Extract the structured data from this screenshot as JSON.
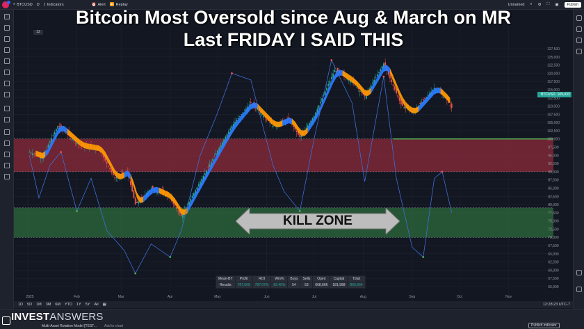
{
  "toolbar": {
    "symbol": "BTCUSD",
    "interval": "D",
    "indicators_label": "Indicators",
    "alert_label": "Alert",
    "replay_label": "Replay",
    "layout_label": "Unnamed",
    "publish_label": "Publish"
  },
  "headline": {
    "line1": "Bitcoin Most Oversold since Aug & March on MR",
    "line2": "Last FRIDAY I SAID THIS"
  },
  "legend_badge": "12",
  "kill_zone_label": "KILL ZONE",
  "price_tag": {
    "symbol": "BTCUSD",
    "value": "109,433"
  },
  "results_table": {
    "headers": [
      "Mean-BT",
      "Profit",
      "ROI",
      "Win%",
      "Buys",
      "Sells",
      "Open",
      "Capital",
      "Total"
    ],
    "row": [
      "Results",
      "787,069",
      "787.07%",
      "82.45%",
      "54",
      "53",
      "668,666",
      "181,998",
      "850,664"
    ]
  },
  "timeframes": [
    "1D",
    "5D",
    "1M",
    "3M",
    "6M",
    "YTD",
    "1Y",
    "5Y",
    "All"
  ],
  "clock": "12:28:23 UTC-7",
  "brand": {
    "bold": "INVEST",
    "thin": "ANSWERS"
  },
  "footer": {
    "model_label": "Multi-Asset Rotation Model [TEST...",
    "add_chart_label": "Add to chart",
    "publish_indicator_label": "Publish indicator"
  },
  "chart_data": {
    "type": "line",
    "y_axis_ticks": [
      "127,500",
      "125,000",
      "122,500",
      "120,000",
      "117,500",
      "115,000",
      "112,500",
      "110,000",
      "107,500",
      "105,000",
      "102,500",
      "100,000",
      "97,500",
      "95,000",
      "92,500",
      "90,000",
      "87,500",
      "85,000",
      "82,500",
      "80,000",
      "77,500",
      "75,000",
      "72,500",
      "70,000",
      "67,500",
      "65,000",
      "62,500",
      "60,000",
      "57,500",
      "55,000"
    ],
    "x_axis_ticks": [
      "2025",
      "Feb",
      "Mar",
      "Apr",
      "May",
      "Jun",
      "Jul",
      "Aug",
      "Sep",
      "Oct",
      "Nov"
    ],
    "price_series": [
      {
        "x": "Jan 2",
        "y": 96000
      },
      {
        "x": "Jan 10",
        "y": 94500
      },
      {
        "x": "Jan 20",
        "y": 104000
      },
      {
        "x": "Jan 27",
        "y": 101000
      },
      {
        "x": "Feb 3",
        "y": 98000
      },
      {
        "x": "Feb 15",
        "y": 97000
      },
      {
        "x": "Feb 25",
        "y": 88000
      },
      {
        "x": "Mar 5",
        "y": 90000
      },
      {
        "x": "Mar 10",
        "y": 80000
      },
      {
        "x": "Mar 20",
        "y": 85000
      },
      {
        "x": "Mar 31",
        "y": 82500
      },
      {
        "x": "Apr 8",
        "y": 76500
      },
      {
        "x": "Apr 20",
        "y": 87000
      },
      {
        "x": "May 1",
        "y": 96500
      },
      {
        "x": "May 10",
        "y": 104000
      },
      {
        "x": "May 22",
        "y": 111000
      },
      {
        "x": "Jun 5",
        "y": 104000
      },
      {
        "x": "Jun 15",
        "y": 106000
      },
      {
        "x": "Jun 22",
        "y": 100500
      },
      {
        "x": "Jul 1",
        "y": 107000
      },
      {
        "x": "Jul 14",
        "y": 121000
      },
      {
        "x": "Jul 25",
        "y": 117500
      },
      {
        "x": "Aug 2",
        "y": 113000
      },
      {
        "x": "Aug 14",
        "y": 123000
      },
      {
        "x": "Aug 25",
        "y": 110500
      },
      {
        "x": "Sep 1",
        "y": 108000
      },
      {
        "x": "Sep 15",
        "y": 115500
      },
      {
        "x": "Sep 22",
        "y": 112500
      },
      {
        "x": "Sep 26",
        "y": 109433
      }
    ],
    "mr_oscillator": [
      {
        "x": "Jan 2",
        "y": 95000
      },
      {
        "x": "Jan 8",
        "y": 82000
      },
      {
        "x": "Jan 15",
        "y": 92000
      },
      {
        "x": "Jan 22",
        "y": 96000
      },
      {
        "x": "Feb 1",
        "y": 78000
      },
      {
        "x": "Feb 10",
        "y": 88000
      },
      {
        "x": "Feb 20",
        "y": 72000
      },
      {
        "x": "Mar 3",
        "y": 66000
      },
      {
        "x": "Mar 10",
        "y": 59000
      },
      {
        "x": "Mar 20",
        "y": 68000
      },
      {
        "x": "Apr 1",
        "y": 64000
      },
      {
        "x": "Apr 8",
        "y": 72000
      },
      {
        "x": "Apr 20",
        "y": 95000
      },
      {
        "x": "May 1",
        "y": 108000
      },
      {
        "x": "May 10",
        "y": 120000
      },
      {
        "x": "May 22",
        "y": 118000
      },
      {
        "x": "Jun 5",
        "y": 92000
      },
      {
        "x": "Jun 12",
        "y": 84000
      },
      {
        "x": "Jun 22",
        "y": 78000
      },
      {
        "x": "Jul 1",
        "y": 100000
      },
      {
        "x": "Jul 12",
        "y": 124000
      },
      {
        "x": "Jul 25",
        "y": 111000
      },
      {
        "x": "Aug 2",
        "y": 87000
      },
      {
        "x": "Aug 14",
        "y": 119000
      },
      {
        "x": "Aug 22",
        "y": 88000
      },
      {
        "x": "Sep 1",
        "y": 67000
      },
      {
        "x": "Sep 8",
        "y": 64000
      },
      {
        "x": "Sep 15",
        "y": 88000
      },
      {
        "x": "Sep 20",
        "y": 90000
      },
      {
        "x": "Sep 26",
        "y": 77500
      }
    ],
    "overbought_band": [
      90000,
      100000
    ],
    "oversold_band": [
      70000,
      79000
    ],
    "reference_line": 100000,
    "grid": true,
    "colors": {
      "overbought_band": "#8c2a3a",
      "oversold_band": "#2e6b3c",
      "oscillator": "#3d6fd6",
      "ribbon_up": "#2979ff",
      "ribbon_down": "#ff9800",
      "candle_up": "#26a69a",
      "candle_down": "#ef5350",
      "reference_line": "#4caf50"
    }
  }
}
